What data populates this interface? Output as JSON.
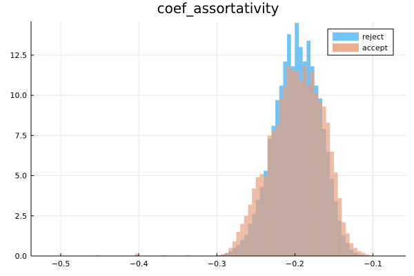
{
  "chart_data": {
    "type": "bar",
    "title": "coef_assortativity",
    "xlabel": "",
    "ylabel": "",
    "xlim": [
      -0.538,
      -0.058
    ],
    "ylim": [
      0,
      14.6
    ],
    "grid": true,
    "legend_position": "top-right",
    "colors": {
      "reject": "#5cb8f5",
      "accept": "#e8a07f",
      "overlap": "#a88d94"
    },
    "x_ticks": [
      {
        "value": -0.5,
        "label": "−0.5"
      },
      {
        "value": -0.4,
        "label": "−0.4"
      },
      {
        "value": -0.3,
        "label": "−0.3"
      },
      {
        "value": -0.2,
        "label": "−0.2"
      },
      {
        "value": -0.1,
        "label": "−0.1"
      }
    ],
    "y_ticks": [
      {
        "value": 0,
        "label": "0.0"
      },
      {
        "value": 2.5,
        "label": "2.5"
      },
      {
        "value": 5.0,
        "label": "5.0"
      },
      {
        "value": 7.5,
        "label": "7.5"
      },
      {
        "value": 10.0,
        "label": "10.0"
      },
      {
        "value": 12.5,
        "label": "12.5"
      }
    ],
    "bin_width": 0.005,
    "series": [
      {
        "name": "reject",
        "bins": [
          {
            "x0": -0.405,
            "value": 0.05
          },
          {
            "x0": -0.3,
            "value": 0.05
          },
          {
            "x0": -0.295,
            "value": 0.1
          },
          {
            "x0": -0.29,
            "value": 0.15
          },
          {
            "x0": -0.285,
            "value": 0.3
          },
          {
            "x0": -0.28,
            "value": 0.5
          },
          {
            "x0": -0.275,
            "value": 0.7
          },
          {
            "x0": -0.27,
            "value": 1.0
          },
          {
            "x0": -0.265,
            "value": 1.3
          },
          {
            "x0": -0.26,
            "value": 2.0
          },
          {
            "x0": -0.255,
            "value": 2.6
          },
          {
            "x0": -0.25,
            "value": 3.5
          },
          {
            "x0": -0.245,
            "value": 4.3
          },
          {
            "x0": -0.24,
            "value": 5.3
          },
          {
            "x0": -0.235,
            "value": 7.3
          },
          {
            "x0": -0.23,
            "value": 8.1
          },
          {
            "x0": -0.225,
            "value": 9.7
          },
          {
            "x0": -0.22,
            "value": 10.6
          },
          {
            "x0": -0.215,
            "value": 12.1
          },
          {
            "x0": -0.21,
            "value": 13.8
          },
          {
            "x0": -0.205,
            "value": 11.8
          },
          {
            "x0": -0.2,
            "value": 14.5
          },
          {
            "x0": -0.195,
            "value": 13.0
          },
          {
            "x0": -0.19,
            "value": 12.1
          },
          {
            "x0": -0.185,
            "value": 13.4
          },
          {
            "x0": -0.18,
            "value": 11.8
          },
          {
            "x0": -0.175,
            "value": 10.6
          },
          {
            "x0": -0.17,
            "value": 9.8
          },
          {
            "x0": -0.165,
            "value": 7.9
          },
          {
            "x0": -0.16,
            "value": 6.5
          },
          {
            "x0": -0.155,
            "value": 4.8
          },
          {
            "x0": -0.15,
            "value": 3.4
          },
          {
            "x0": -0.145,
            "value": 2.2
          },
          {
            "x0": -0.14,
            "value": 1.3
          },
          {
            "x0": -0.135,
            "value": 0.8
          },
          {
            "x0": -0.13,
            "value": 0.4
          },
          {
            "x0": -0.125,
            "value": 0.2
          },
          {
            "x0": -0.12,
            "value": 0.1
          },
          {
            "x0": -0.115,
            "value": 0.05
          }
        ]
      },
      {
        "name": "accept",
        "bins": [
          {
            "x0": -0.455,
            "value": 0.05
          },
          {
            "x0": -0.405,
            "value": 0.15
          },
          {
            "x0": -0.37,
            "value": 0.05
          },
          {
            "x0": -0.34,
            "value": 0.05
          },
          {
            "x0": -0.3,
            "value": 0.05
          },
          {
            "x0": -0.295,
            "value": 0.1
          },
          {
            "x0": -0.29,
            "value": 0.2
          },
          {
            "x0": -0.285,
            "value": 0.5
          },
          {
            "x0": -0.28,
            "value": 0.9
          },
          {
            "x0": -0.275,
            "value": 1.5
          },
          {
            "x0": -0.27,
            "value": 2.0
          },
          {
            "x0": -0.265,
            "value": 2.5
          },
          {
            "x0": -0.26,
            "value": 3.2
          },
          {
            "x0": -0.255,
            "value": 4.2
          },
          {
            "x0": -0.25,
            "value": 4.9
          },
          {
            "x0": -0.245,
            "value": 5.1
          },
          {
            "x0": -0.24,
            "value": 5.0
          },
          {
            "x0": -0.235,
            "value": 7.5
          },
          {
            "x0": -0.23,
            "value": 7.8
          },
          {
            "x0": -0.225,
            "value": 8.1
          },
          {
            "x0": -0.22,
            "value": 9.8
          },
          {
            "x0": -0.215,
            "value": 10.5
          },
          {
            "x0": -0.21,
            "value": 11.8
          },
          {
            "x0": -0.205,
            "value": 11.6
          },
          {
            "x0": -0.2,
            "value": 11.5
          },
          {
            "x0": -0.195,
            "value": 10.9
          },
          {
            "x0": -0.19,
            "value": 11.8
          },
          {
            "x0": -0.185,
            "value": 10.6
          },
          {
            "x0": -0.18,
            "value": 11.5
          },
          {
            "x0": -0.175,
            "value": 10.1
          },
          {
            "x0": -0.17,
            "value": 9.6
          },
          {
            "x0": -0.165,
            "value": 9.3
          },
          {
            "x0": -0.16,
            "value": 8.3
          },
          {
            "x0": -0.155,
            "value": 6.5
          },
          {
            "x0": -0.15,
            "value": 5.2
          },
          {
            "x0": -0.145,
            "value": 3.6
          },
          {
            "x0": -0.14,
            "value": 2.1
          },
          {
            "x0": -0.135,
            "value": 1.4
          },
          {
            "x0": -0.13,
            "value": 0.8
          },
          {
            "x0": -0.125,
            "value": 0.5
          },
          {
            "x0": -0.12,
            "value": 0.3
          },
          {
            "x0": -0.115,
            "value": 0.2
          },
          {
            "x0": -0.11,
            "value": 0.1
          },
          {
            "x0": -0.105,
            "value": 0.05
          }
        ]
      }
    ]
  }
}
